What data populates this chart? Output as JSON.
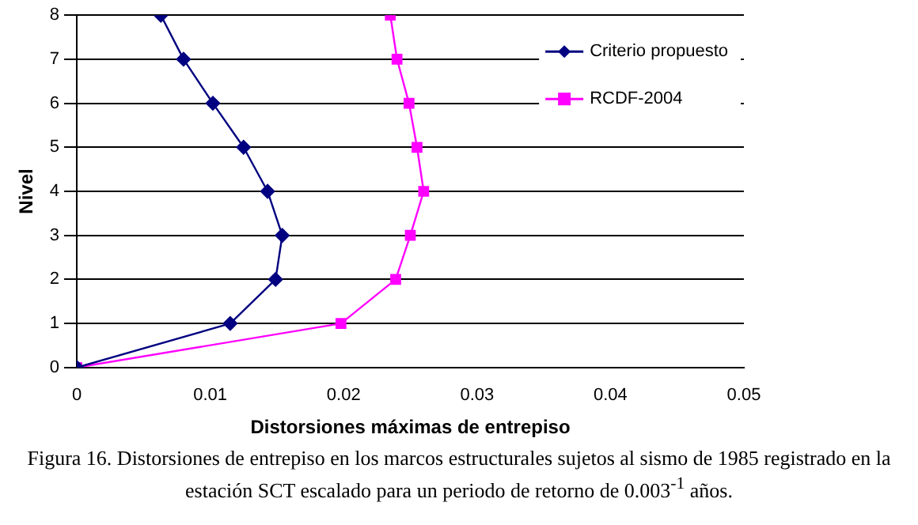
{
  "chart_data": {
    "type": "line",
    "xlabel": "Distorsiones máximas de entrepiso",
    "ylabel": "Nivel",
    "xlim": [
      0,
      0.05
    ],
    "xticks": [
      0,
      0.01,
      0.02,
      0.03,
      0.04,
      0.05
    ],
    "ylim": [
      0,
      8
    ],
    "yticks": [
      0,
      1,
      2,
      3,
      4,
      5,
      6,
      7,
      8
    ],
    "grid": "y",
    "legend": "top right",
    "series": [
      {
        "name": "Criterio propuesto",
        "color": "#000080",
        "marker": "diamond",
        "x": [
          0,
          0.0115,
          0.0149,
          0.0154,
          0.0143,
          0.0125,
          0.0102,
          0.008,
          0.0063
        ],
        "values": [
          0,
          1,
          2,
          3,
          4,
          5,
          6,
          7,
          8
        ]
      },
      {
        "name": "RCDF-2004",
        "color": "#ff00ff",
        "marker": "square",
        "x": [
          0,
          0.0198,
          0.0239,
          0.025,
          0.026,
          0.0255,
          0.0249,
          0.024,
          0.0235
        ],
        "values": [
          0,
          1,
          2,
          3,
          4,
          5,
          6,
          7,
          8
        ]
      }
    ],
    "annotations": [
      "Figura 16. Distorsiones de entrepiso en los marcos estructurales sujetos al sismo de 1985 registrado en la estación SCT escalado para un periodo de retorno de 0.003$^{-1}$ años."
    ]
  }
}
